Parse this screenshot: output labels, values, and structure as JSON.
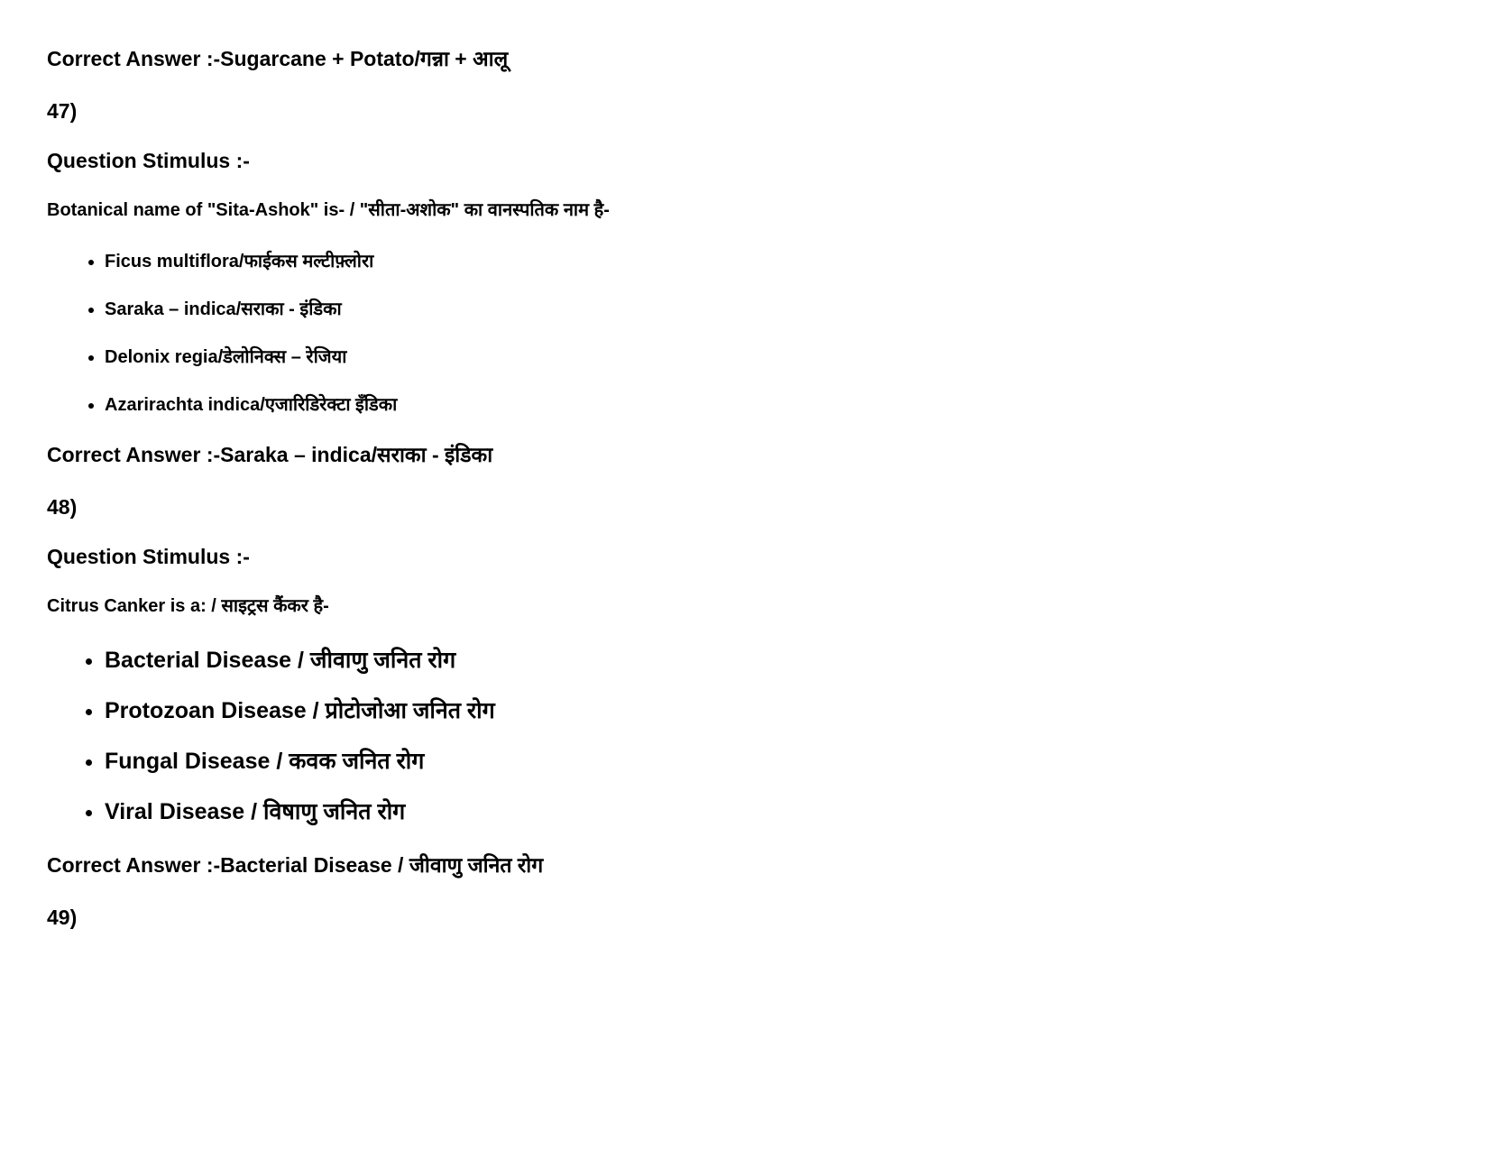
{
  "background_color": "#ffffff",
  "text_color": "#000000",
  "font_family": "Arial, Helvetica, sans-serif",
  "correct_answer_label": "Correct Answer :-",
  "stimulus_label": "Question Stimulus :-",
  "top_correct_answer": "Sugarcane + Potato/गन्ना + आलू",
  "q47": {
    "number": "47)",
    "question_text": "Botanical name of \"Sita-Ashok\" is-  /  \"सीता-अशोक\" का वानस्पतिक नाम है-",
    "options": [
      "Ficus multiflora/फाईकस मल्टीफ़्लोरा",
      "Saraka – indica/सराका - इंडिका",
      "Delonix regia/डेलोनिक्स – रेजिया",
      "Azarirachta indica/एजारिडिरेक्टा इँडिका"
    ],
    "correct_answer": "Saraka – indica/सराका - इंडिका",
    "option_fontsize": 20
  },
  "q48": {
    "number": "48)",
    "question_text": "Citrus Canker is a: / साइट्रस कैंकर है-",
    "options": [
      "Bacterial  Disease / जीवाणु जनित रोग",
      "Protozoan  Disease / प्रोटोजोआ जनित रोग",
      "Fungal  Disease / कवक जनित रोग",
      "Viral  Disease / विषाणु जनित रोग"
    ],
    "correct_answer": "Bacterial  Disease / जीवाणु जनित रोग",
    "option_fontsize": 25
  },
  "q49": {
    "number": "49)"
  }
}
